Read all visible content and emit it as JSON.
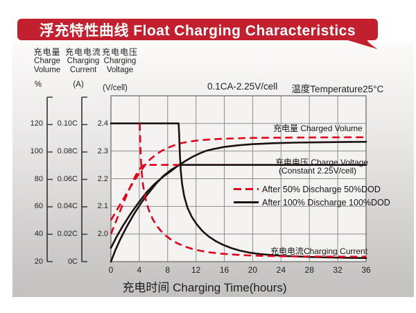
{
  "banner": {
    "title": "浮充特性曲线 Float Charging Characteristics"
  },
  "colors": {
    "banner_red": "#c3202f",
    "curve_red": "#e2001a",
    "curve_black": "#1a1110",
    "grid": "#8c8c8c",
    "plot_border": "#6f6f6f",
    "axis_line": "#2f2f2f",
    "plot_bg": "#f4f3f1"
  },
  "condition": {
    "left": "0.1CA-2.25V/cell",
    "right": "温度Temperature25°C"
  },
  "y_axes": [
    {
      "id": "volume",
      "title_zh": "充电量",
      "title_en": [
        "Charge",
        "Volume"
      ],
      "unit": "%",
      "ticks": [
        "120",
        "100",
        "80",
        "60",
        "40",
        "20"
      ]
    },
    {
      "id": "current",
      "title_zh": "充电电流",
      "title_en": [
        "Charging",
        "Current"
      ],
      "unit": "(A)",
      "ticks": [
        "0.10C",
        "0.08C",
        "0.06C",
        "0.04C",
        "0.02C",
        "0C"
      ]
    },
    {
      "id": "voltage",
      "title_zh": "充电电压",
      "title_en": [
        "Charging",
        "Voltage"
      ],
      "unit": "(V/cell)",
      "ticks": [
        "2.4",
        "2.3",
        "2.2",
        "2.1",
        "2.0"
      ]
    }
  ],
  "x_axis": {
    "title": "充电时间 Charging Time(hours)",
    "ticks": [
      "0",
      "4",
      "8",
      "12",
      "16",
      "20",
      "24",
      "28",
      "32",
      "36"
    ]
  },
  "curve_labels": {
    "charged_volume": "充电量 Charged Volume",
    "charge_voltage": "充电电压 Charge Voltage",
    "charge_voltage_sub": "(Constant 2.25V/cell)",
    "charging_current": "充电电流Charging Current"
  },
  "legend": [
    {
      "label": "After 50% Discharge 50%DOD",
      "style": "dashed",
      "color": "#e2001a"
    },
    {
      "label": "After 100%  Discharge 100%DOD",
      "style": "solid",
      "color": "#1a1110"
    }
  ],
  "chart_data": {
    "type": "line",
    "title": "浮充特性曲线 Float Charging Characteristics",
    "condition": "0.1CA-2.25V/cell, Temperature 25°C",
    "xlabel": "充电时间 Charging Time(hours)",
    "x_range": [
      0,
      36
    ],
    "x_gridline_step_hours": 4,
    "grid": true,
    "axes": {
      "charge_volume_pct": {
        "range": [
          20,
          120
        ],
        "ticks": [
          120,
          100,
          80,
          60,
          40,
          20
        ]
      },
      "charging_current_CA": {
        "range": [
          0,
          0.1
        ],
        "ticks": [
          0.1,
          0.08,
          0.06,
          0.04,
          0.02,
          0
        ]
      },
      "voltage_V_per_cell": {
        "range": [
          1.9,
          2.5
        ],
        "ticks": [
          2.4,
          2.3,
          2.2,
          2.1,
          2.0
        ]
      }
    },
    "series": [
      {
        "name": "Charge Voltage after 100% DOD",
        "scale": "V",
        "style": "solid",
        "color": "#1a1110",
        "note": "rises to 2.25V at ~9.6h then constant 2.25V/cell",
        "points": [
          [
            0,
            1.95
          ],
          [
            0.8,
            1.99
          ],
          [
            1.7,
            2.03
          ],
          [
            2.7,
            2.07
          ],
          [
            3.8,
            2.11
          ],
          [
            5,
            2.15
          ],
          [
            6.2,
            2.182
          ],
          [
            7.4,
            2.208
          ],
          [
            8.5,
            2.228
          ],
          [
            9.6,
            2.25
          ],
          [
            36,
            2.25
          ]
        ]
      },
      {
        "name": "Charged Volume after 100% DOD",
        "scale": "pct",
        "style": "solid",
        "color": "#1a1110",
        "points": [
          [
            0,
            20
          ],
          [
            0.6,
            28
          ],
          [
            1.3,
            36
          ],
          [
            2.2,
            45
          ],
          [
            3.2,
            54
          ],
          [
            4.2,
            62
          ],
          [
            5.2,
            69
          ],
          [
            6.3,
            76
          ],
          [
            7.4,
            82
          ],
          [
            8.5,
            86.5
          ],
          [
            9.6,
            89.8
          ],
          [
            10.5,
            92.8
          ],
          [
            11.5,
            95.8
          ],
          [
            12.5,
            98.3
          ],
          [
            13.5,
            100.3
          ],
          [
            14.5,
            101.5
          ],
          [
            16,
            103
          ],
          [
            18,
            104.2
          ],
          [
            20,
            105
          ],
          [
            23,
            105.7
          ],
          [
            26,
            106.1
          ],
          [
            30,
            106.4
          ],
          [
            36,
            106.7
          ]
        ]
      },
      {
        "name": "Charge Voltage after 50% DOD",
        "scale": "V",
        "style": "dashed",
        "color": "#e2001a",
        "note": "reaches 2.25V at ~4.7h, then follows constant 2.25V/cell line",
        "points": [
          [
            0,
            2.0
          ],
          [
            0.5,
            2.032
          ],
          [
            1,
            2.064
          ],
          [
            1.5,
            2.096
          ],
          [
            2,
            2.127
          ],
          [
            2.5,
            2.157
          ],
          [
            3,
            2.186
          ],
          [
            3.4,
            2.207
          ],
          [
            3.8,
            2.225
          ],
          [
            4.1,
            2.237
          ],
          [
            4.4,
            2.245
          ],
          [
            4.7,
            2.25
          ],
          [
            9.6,
            2.25
          ]
        ]
      },
      {
        "name": "Charged Volume after 50% DOD",
        "scale": "pct",
        "style": "dashed",
        "color": "#e2001a",
        "points": [
          [
            0,
            50
          ],
          [
            0.8,
            57
          ],
          [
            1.6,
            64
          ],
          [
            2.4,
            71
          ],
          [
            3.2,
            77.8
          ],
          [
            4,
            84
          ],
          [
            4.8,
            89.8
          ],
          [
            5.6,
            94.3
          ],
          [
            6.4,
            97.5
          ],
          [
            7.2,
            100.3
          ],
          [
            8,
            102.3
          ],
          [
            9,
            104.3
          ],
          [
            10,
            105.8
          ],
          [
            11,
            106.8
          ],
          [
            12,
            107.5
          ],
          [
            13.5,
            108.2
          ],
          [
            15,
            108.7
          ],
          [
            17,
            109.1
          ],
          [
            20,
            109.5
          ],
          [
            24,
            109.7
          ],
          [
            28,
            109.8
          ],
          [
            32,
            109.9
          ],
          [
            36,
            110
          ]
        ]
      },
      {
        "name": "Charging Current after 100% DOD",
        "scale": "C",
        "style": "solid",
        "color": "#1a1110",
        "note": "constant current 0.10CA until ~9.6h, then tapers",
        "points": [
          [
            0,
            0.1
          ],
          [
            9.55,
            0.1
          ],
          [
            9.63,
            0.092
          ],
          [
            9.72,
            0.078
          ],
          [
            9.85,
            0.066
          ],
          [
            10.05,
            0.056
          ],
          [
            10.35,
            0.047
          ],
          [
            10.8,
            0.039
          ],
          [
            11.4,
            0.0325
          ],
          [
            12.1,
            0.027
          ],
          [
            12.9,
            0.0222
          ],
          [
            13.8,
            0.0182
          ],
          [
            14.8,
            0.0148
          ],
          [
            15.8,
            0.0122
          ],
          [
            17,
            0.0098
          ],
          [
            18.2,
            0.008
          ],
          [
            19.5,
            0.0066
          ],
          [
            21,
            0.0055
          ],
          [
            23,
            0.0046
          ],
          [
            25,
            0.004
          ],
          [
            28,
            0.0034
          ],
          [
            31,
            0.003
          ],
          [
            34,
            0.0027
          ],
          [
            36,
            0.0026
          ]
        ]
      },
      {
        "name": "Charging Current after 50% DOD",
        "scale": "C",
        "style": "dashed",
        "color": "#e2001a",
        "note": "coincides with 0.10CA limit line from 0 to ~4.1h, then tapers",
        "visible_from": 4.0,
        "points": [
          [
            0,
            0.1
          ],
          [
            4.05,
            0.1
          ],
          [
            4.12,
            0.09
          ],
          [
            4.2,
            0.077
          ],
          [
            4.32,
            0.066
          ],
          [
            4.5,
            0.0565
          ],
          [
            4.75,
            0.0485
          ],
          [
            5.05,
            0.042
          ],
          [
            5.45,
            0.036
          ],
          [
            5.9,
            0.0308
          ],
          [
            6.4,
            0.0264
          ],
          [
            7,
            0.0225
          ],
          [
            7.7,
            0.019
          ],
          [
            8.5,
            0.0158
          ],
          [
            9.4,
            0.0132
          ],
          [
            10.4,
            0.011
          ],
          [
            11.5,
            0.0092
          ],
          [
            12.7,
            0.0078
          ],
          [
            14,
            0.0067
          ],
          [
            15.5,
            0.0058
          ],
          [
            17,
            0.0052
          ],
          [
            19,
            0.0046
          ],
          [
            21,
            0.0042
          ],
          [
            24,
            0.0039
          ],
          [
            28,
            0.0037
          ],
          [
            32,
            0.0036
          ],
          [
            36,
            0.0036
          ]
        ]
      }
    ],
    "legend_position": "center-right"
  }
}
